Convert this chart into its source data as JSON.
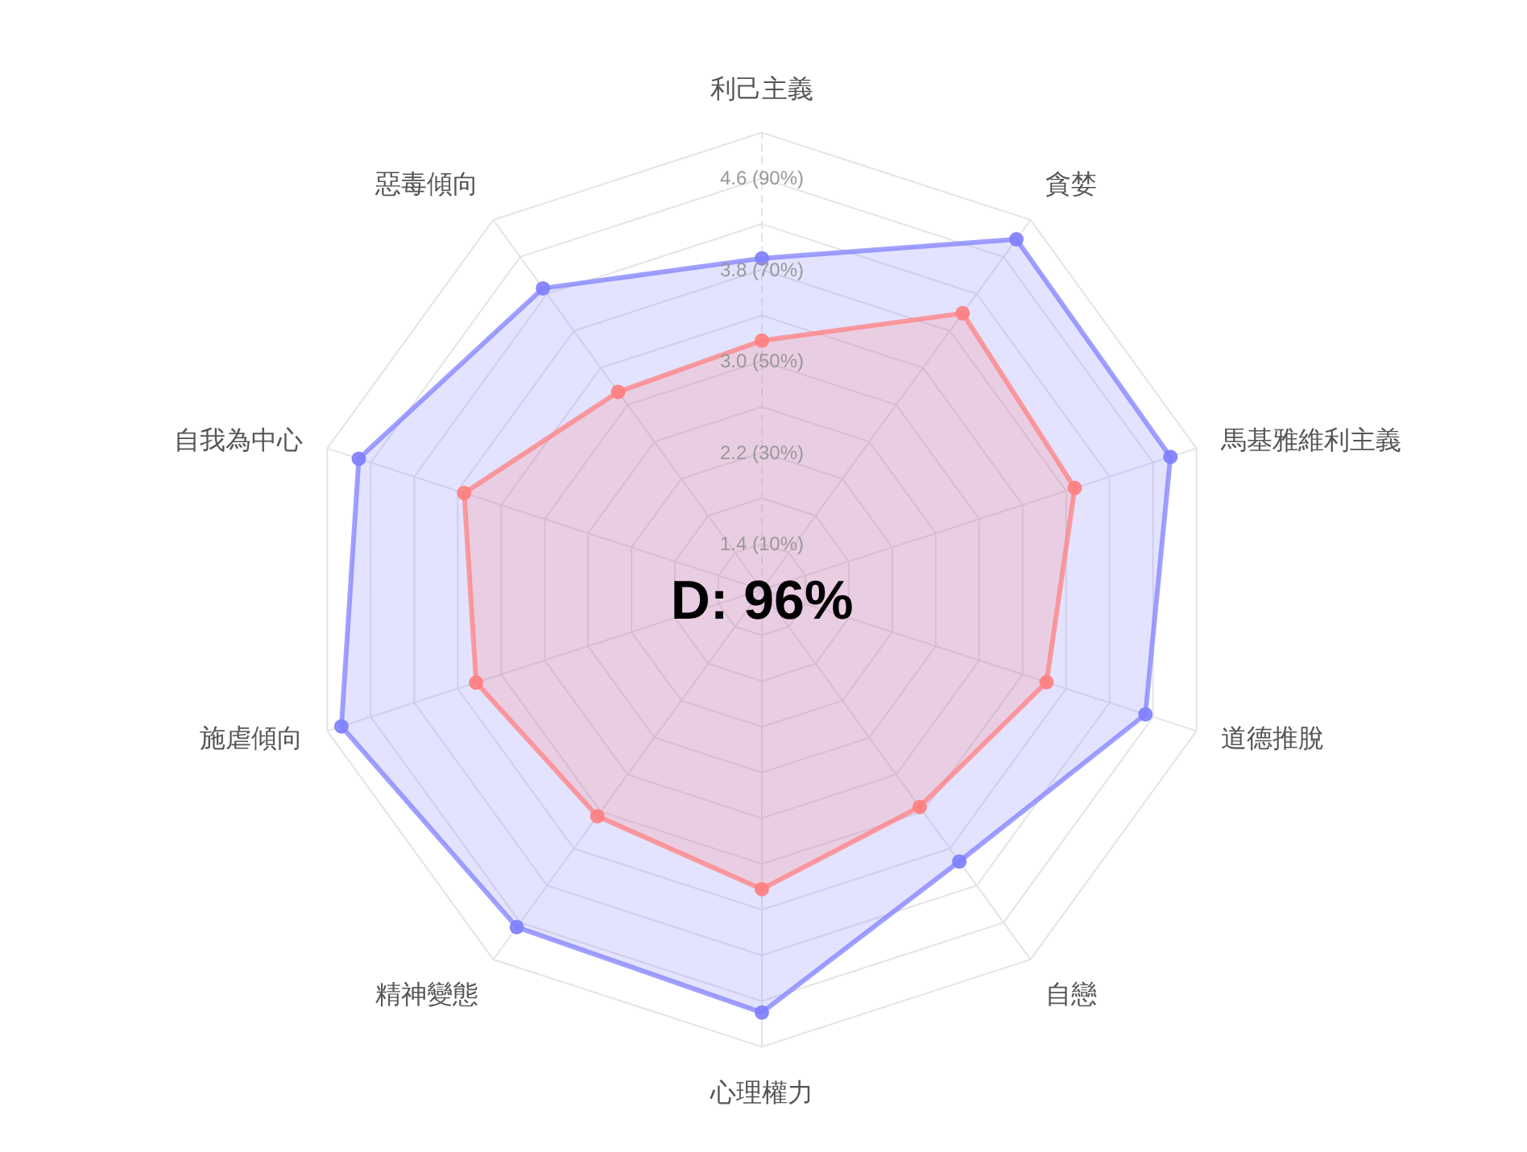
{
  "chart_data": {
    "type": "radar",
    "categories": [
      "利己主義",
      "貪婪",
      "馬基雅維利主義",
      "道德推脫",
      "自戀",
      "心理權力",
      "精神變態",
      "施虐傾向",
      "自我為中心",
      "惡毒傾向"
    ],
    "series": [
      {
        "color": "#8080ff",
        "values": [
          3.9,
          4.79,
          4.76,
          4.53,
          3.94,
          4.7,
          4.65,
          4.87,
          4.71,
          4.26
        ]
      },
      {
        "color": "#ff8080",
        "values": [
          3.18,
          3.99,
          3.88,
          3.62,
          3.35,
          3.62,
          3.45,
          3.63,
          3.74,
          3.14
        ]
      }
    ],
    "ylim": [
      1,
      5
    ],
    "yticks": [
      {
        "value": 1.4,
        "label": "1.4 (10%)"
      },
      {
        "value": 2.2,
        "label": "2.2 (30%)"
      },
      {
        "value": 3.0,
        "label": "3.0 (50%)"
      },
      {
        "value": 3.8,
        "label": "3.8 (70%)"
      },
      {
        "value": 4.6,
        "label": "4.6 (90%)"
      }
    ],
    "marker": "circle",
    "annotations": [
      "D: 96%"
    ]
  }
}
